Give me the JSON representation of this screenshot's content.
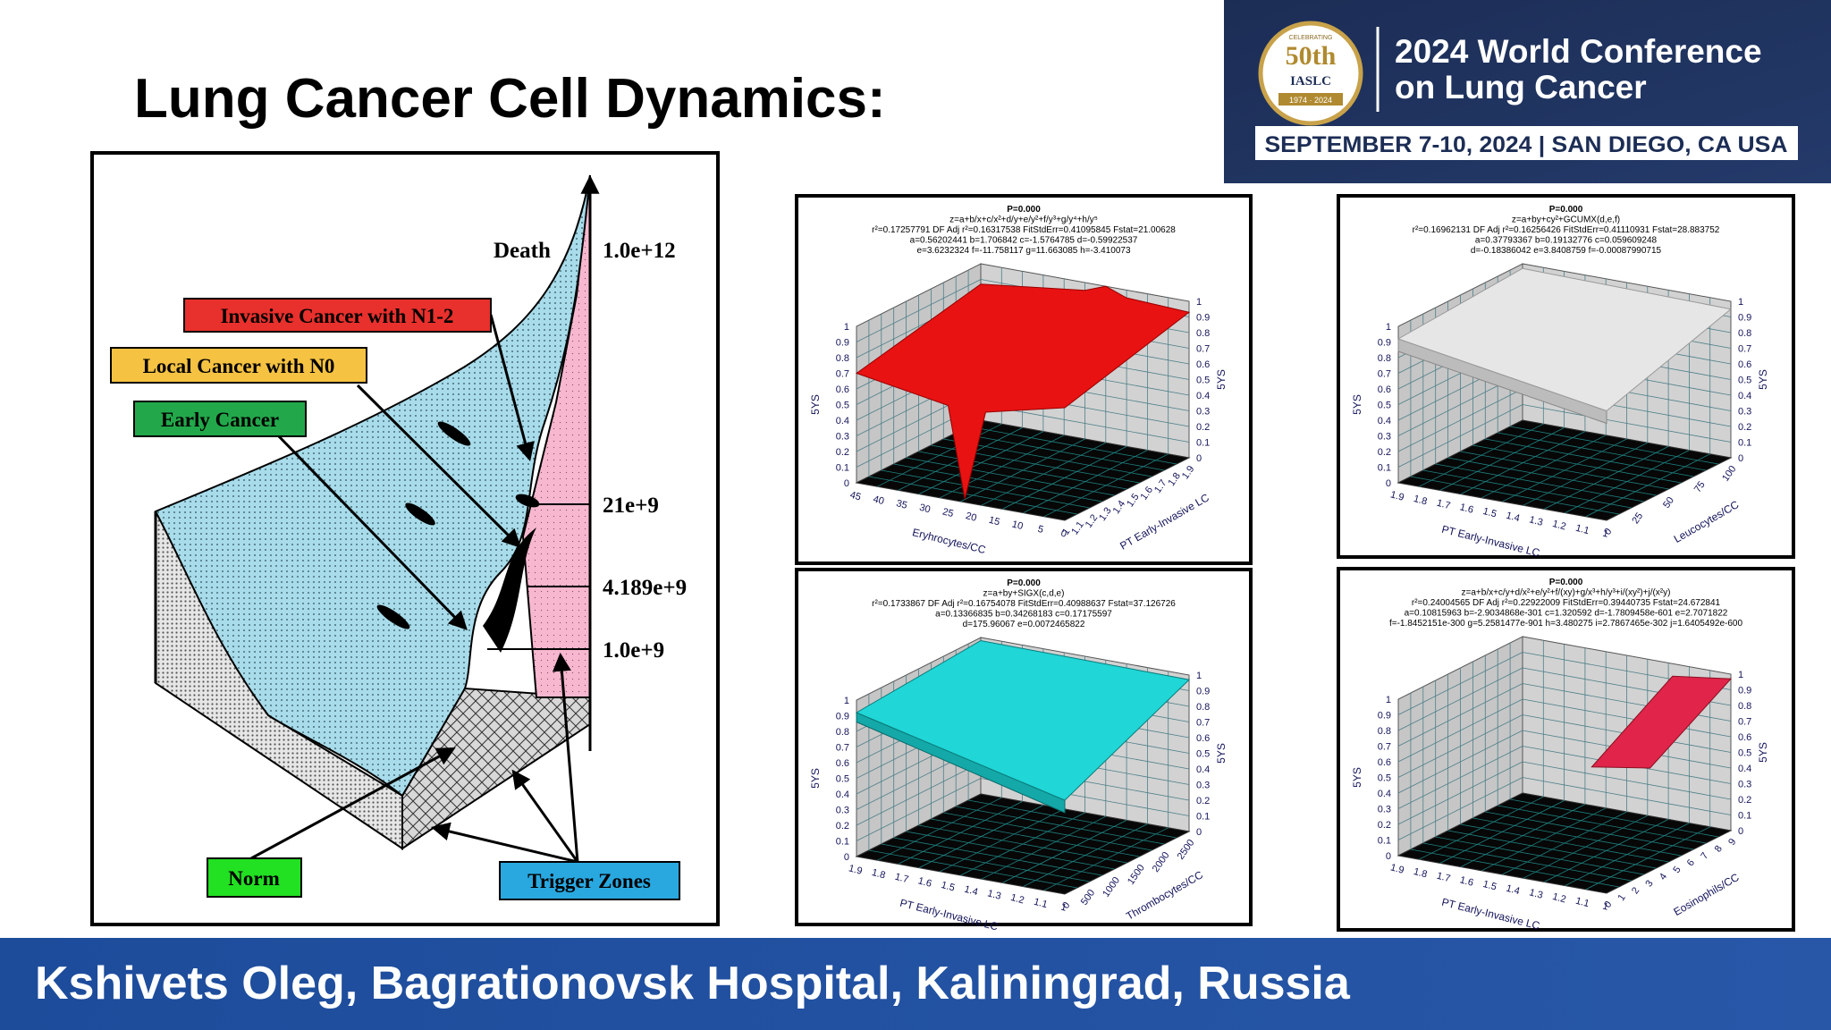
{
  "slide": {
    "title": "Lung Cancer Cell Dynamics:",
    "footer": "Kshivets Oleg, Bagrationovsk Hospital, Kaliningrad, Russia"
  },
  "logo": {
    "badge": [
      "CELEBRATING",
      "50th",
      "IASLC",
      "1974 · 2024"
    ],
    "conference": [
      "2024 World Conference",
      "on Lung Cancer"
    ],
    "dates": "SEPTEMBER 7-10, 2024 | SAN DIEGO, CA USA"
  },
  "diagram": {
    "death": "Death",
    "levels": [
      "1.0e+12",
      "21e+9",
      "4.189e+9",
      "1.0e+9"
    ],
    "stages": [
      "Invasive Cancer with N1-2",
      "Local Cancer with N0",
      "Early Cancer",
      "Norm",
      "Trigger Zones"
    ]
  },
  "plots": [
    {
      "header": [
        "P=0.000",
        "z=a+b/x+c/x²+d/y+e/y²+f/y³+g/y⁴+h/y⁵",
        "r²=0.17257791  DF Adj r²=0.16317538  FitStdErr=0.41095845  Fstat=21.00628",
        "a=0.56202441 b=1.706842 c=-1.5764785 d=-0.59922537",
        "e=3.6232324 f=-11.758117 g=11.663085 h=-3.410073"
      ],
      "z_label": "5YS",
      "z_ticks": [
        "0",
        "0.1",
        "0.2",
        "0.3",
        "0.4",
        "0.5",
        "0.6",
        "0.7",
        "0.8",
        "0.9",
        "1"
      ],
      "x_label": "Eryhrocytes/CC",
      "x_ticks": [
        "45",
        "40",
        "35",
        "30",
        "25",
        "20",
        "15",
        "10",
        "5",
        "0"
      ],
      "y_label": "PT Early-Invasive LC",
      "y_ticks": [
        "1",
        "1.1",
        "1.2",
        "1.3",
        "1.4",
        "1.5",
        "1.6",
        "1.7",
        "1.8",
        "1.9"
      ]
    },
    {
      "header": [
        "P=0.000",
        "z=a+by+cy²+GCUMX(d,e,f)",
        "r²=0.16962131  DF Adj r²=0.16256426  FitStdErr=0.41110931  Fstat=28.883752",
        "a=0.37793367 b=0.19132776 c=0.059609248",
        "d=-0.18386042 e=3.8408759 f=-0.00087990715"
      ],
      "z_label": "5YS",
      "z_ticks": [
        "0",
        "0.1",
        "0.2",
        "0.3",
        "0.4",
        "0.5",
        "0.6",
        "0.7",
        "0.8",
        "0.9",
        "1"
      ],
      "x_label": "PT Early-Invasive LC",
      "x_ticks": [
        "1.9",
        "1.8",
        "1.7",
        "1.6",
        "1.5",
        "1.4",
        "1.3",
        "1.2",
        "1.1",
        "1"
      ],
      "y_label": "Leucocytes/CC",
      "y_ticks": [
        "0",
        "25",
        "50",
        "75",
        "100"
      ]
    },
    {
      "header": [
        "P=0.000",
        "z=a+by+SIGX(c,d,e)",
        "r²=0.1733867  DF Adj r²=0.16754078  FitStdErr=0.40988637  Fstat=37.126726",
        "a=0.13366835 b=0.34268183 c=0.17175597",
        "d=175.96067 e=0.0072465822"
      ],
      "z_label": "5YS",
      "z_ticks": [
        "0",
        "0.1",
        "0.2",
        "0.3",
        "0.4",
        "0.5",
        "0.6",
        "0.7",
        "0.8",
        "0.9",
        "1"
      ],
      "x_label": "PT Early-Invasive LC",
      "x_ticks": [
        "1.9",
        "1.8",
        "1.7",
        "1.6",
        "1.5",
        "1.4",
        "1.3",
        "1.2",
        "1.1",
        "1"
      ],
      "y_label": "Thrombocytes/CC",
      "y_ticks": [
        "0",
        "500",
        "1000",
        "1500",
        "2000",
        "2500"
      ]
    },
    {
      "header": [
        "P=0.000",
        "z=a+b/x+c/y+d/x²+e/y²+f/(xy)+g/x³+h/y³+i/(xy²)+j/(x²y)",
        "r²=0.24004565  DF Adj r²=0.22922009  FitStdErr=0.39440735  Fstat=24.672841",
        "a=0.10815963 b=-2.9034868e-301 c=1.320592 d=-1.7809458e-601 e=2.7071822",
        "f=-1.8452151e-300 g=5.2581477e-901 h=3.480275 i=2.7867465e-302 j=1.6405492e-600"
      ],
      "z_label": "5YS",
      "z_ticks": [
        "0",
        "0.1",
        "0.2",
        "0.3",
        "0.4",
        "0.5",
        "0.6",
        "0.7",
        "0.8",
        "0.9",
        "1"
      ],
      "x_label": "PT Early-Invasive LC",
      "x_ticks": [
        "1.9",
        "1.8",
        "1.7",
        "1.6",
        "1.5",
        "1.4",
        "1.3",
        "1.2",
        "1.1",
        "1"
      ],
      "y_label": "Eosinophils/CC",
      "y_ticks": [
        "0",
        "1",
        "2",
        "3",
        "4",
        "5",
        "6",
        "7",
        "8",
        "9"
      ]
    }
  ]
}
